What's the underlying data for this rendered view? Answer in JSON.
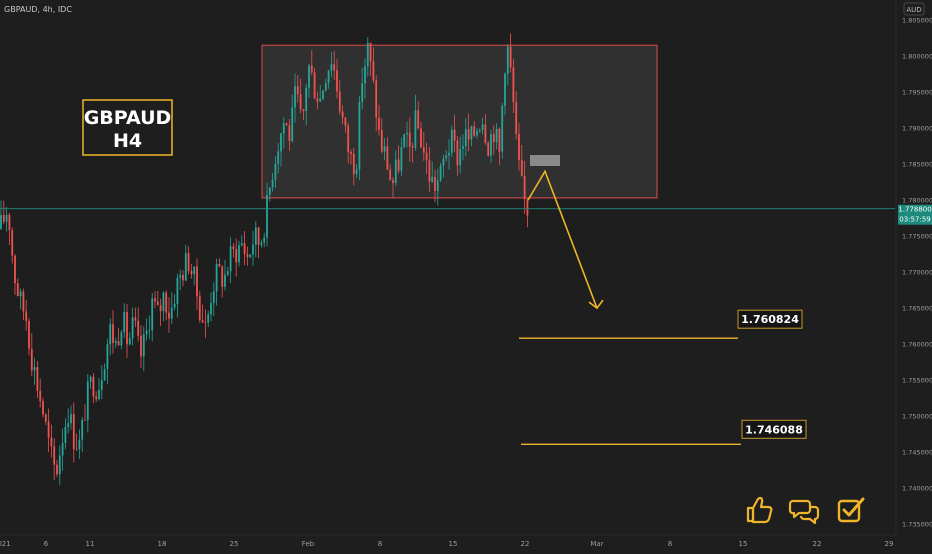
{
  "header": {
    "symbol_line": "GBPAUD, 4h, IDC",
    "currency": "AUD"
  },
  "title_box": {
    "line1": "GBPAUD",
    "line2": "H4"
  },
  "price_tag": {
    "price": "1.778800",
    "timer": "03:57:59"
  },
  "targets": [
    {
      "label": "1.760824",
      "value": 1.760824
    },
    {
      "label": "1.746088",
      "value": 1.746088
    }
  ],
  "icons": [
    "thumbs-up-icon",
    "chat-bubbles-icon",
    "checkbox-icon"
  ],
  "colors": {
    "background": "#1e1e1e",
    "up": "#26a69a",
    "down": "#ef5350",
    "accent": "#f0b429",
    "range_border": "#e04b4b",
    "current_line": "#1e8c7e"
  },
  "chart_data": {
    "type": "candlestick",
    "y_axis_ticks": [
      "1.805000",
      "1.800000",
      "1.795000",
      "1.790000",
      "1.785000",
      "1.780000",
      "1.775000",
      "1.770000",
      "1.765000",
      "1.760000",
      "1.755000",
      "1.750000",
      "1.745000",
      "1.740000",
      "1.735000"
    ],
    "ylim": [
      1.7335,
      1.8075
    ],
    "x_axis_ticks": [
      "021",
      "6",
      "11",
      "18",
      "25",
      "Feb",
      "8",
      "15",
      "22",
      "Mar",
      "8",
      "15",
      "22",
      "29"
    ],
    "range_box": {
      "top": 1.8015,
      "bottom": 1.7803
    },
    "current_price": 1.7788,
    "price_path": [
      [
        0,
        1.776
      ],
      [
        8,
        1.779
      ],
      [
        14,
        1.77
      ],
      [
        20,
        1.766
      ],
      [
        26,
        1.764
      ],
      [
        32,
        1.758
      ],
      [
        38,
        1.754
      ],
      [
        44,
        1.75
      ],
      [
        50,
        1.745
      ],
      [
        56,
        1.742
      ],
      [
        62,
        1.747
      ],
      [
        68,
        1.751
      ],
      [
        74,
        1.747
      ],
      [
        80,
        1.746
      ],
      [
        86,
        1.752
      ],
      [
        92,
        1.755
      ],
      [
        98,
        1.754
      ],
      [
        104,
        1.758
      ],
      [
        110,
        1.762
      ],
      [
        116,
        1.76
      ],
      [
        122,
        1.764
      ],
      [
        128,
        1.76
      ],
      [
        134,
        1.763
      ],
      [
        140,
        1.758
      ],
      [
        146,
        1.761
      ],
      [
        152,
        1.766
      ],
      [
        158,
        1.764
      ],
      [
        164,
        1.767
      ],
      [
        170,
        1.764
      ],
      [
        176,
        1.768
      ],
      [
        182,
        1.77
      ],
      [
        188,
        1.772
      ],
      [
        194,
        1.769
      ],
      [
        200,
        1.765
      ],
      [
        206,
        1.762
      ],
      [
        212,
        1.768
      ],
      [
        218,
        1.77
      ],
      [
        224,
        1.769
      ],
      [
        230,
        1.772
      ],
      [
        236,
        1.773
      ],
      [
        242,
        1.774
      ],
      [
        248,
        1.772
      ],
      [
        254,
        1.775
      ],
      [
        260,
        1.774
      ],
      [
        266,
        1.778
      ],
      [
        272,
        1.784
      ],
      [
        278,
        1.788
      ],
      [
        284,
        1.791
      ],
      [
        290,
        1.789
      ],
      [
        296,
        1.795
      ],
      [
        302,
        1.79
      ],
      [
        308,
        1.799
      ],
      [
        314,
        1.796
      ],
      [
        320,
        1.794
      ],
      [
        326,
        1.798
      ],
      [
        332,
        1.8
      ],
      [
        338,
        1.795
      ],
      [
        344,
        1.79
      ],
      [
        350,
        1.786
      ],
      [
        356,
        1.785
      ],
      [
        362,
        1.797
      ],
      [
        368,
        1.801
      ],
      [
        374,
        1.795
      ],
      [
        380,
        1.788
      ],
      [
        386,
        1.786
      ],
      [
        392,
        1.782
      ],
      [
        398,
        1.785
      ],
      [
        404,
        1.788
      ],
      [
        410,
        1.787
      ],
      [
        416,
        1.791
      ],
      [
        422,
        1.788
      ],
      [
        428,
        1.784
      ],
      [
        434,
        1.782
      ],
      [
        440,
        1.783
      ],
      [
        446,
        1.787
      ],
      [
        452,
        1.788
      ],
      [
        458,
        1.786
      ],
      [
        464,
        1.789
      ],
      [
        470,
        1.788
      ],
      [
        476,
        1.79
      ],
      [
        482,
        1.792
      ],
      [
        488,
        1.788
      ],
      [
        494,
        1.79
      ],
      [
        500,
        1.786
      ],
      [
        504,
        1.799
      ],
      [
        508,
        1.801
      ],
      [
        512,
        1.796
      ],
      [
        516,
        1.788
      ],
      [
        520,
        1.783
      ],
      [
        524,
        1.78
      ],
      [
        528,
        1.7788
      ]
    ],
    "projection_path": [
      [
        528,
        1.78
      ],
      [
        545,
        1.784
      ],
      [
        597,
        1.765
      ]
    ],
    "projection_marker": {
      "x": 545,
      "value": 1.7855
    }
  }
}
